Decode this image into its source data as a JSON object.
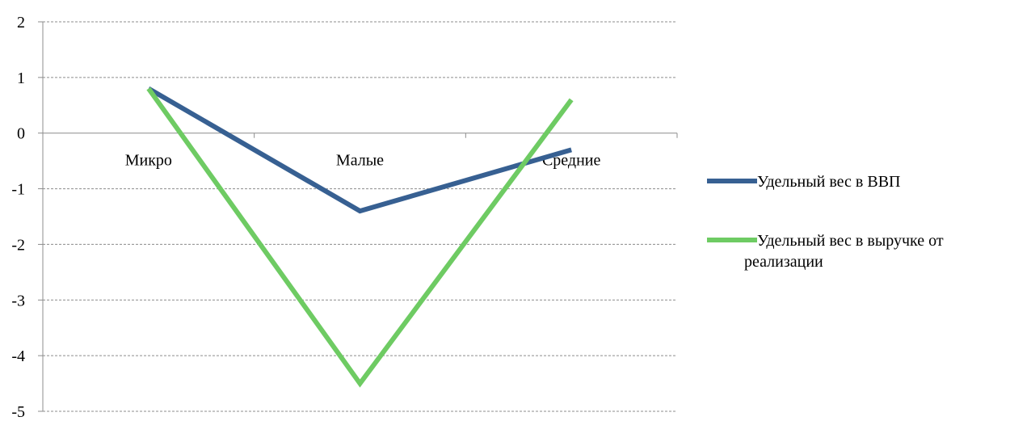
{
  "chart_data": {
    "type": "line",
    "title": "",
    "xlabel": "",
    "ylabel": "",
    "categories": [
      "Микро",
      "Малые",
      "Средние"
    ],
    "ylim": [
      -5,
      2
    ],
    "yticks": [
      2,
      1,
      0,
      -1,
      -2,
      -3,
      -4,
      -5
    ],
    "ytick_labels": [
      "2",
      "1",
      "0",
      "-1",
      "-2",
      "-3",
      "-4",
      "-5"
    ],
    "grid": "horizontal dashed",
    "legend_position": "right",
    "series": [
      {
        "name": "Удельный вес в ВВП",
        "values": [
          0.8,
          -1.4,
          -0.3
        ],
        "color": "#376092"
      },
      {
        "name": "Удельный вес в выручке от реализации",
        "values": [
          0.8,
          -4.5,
          0.6
        ],
        "color": "#6ECB63"
      }
    ],
    "legend_lines": [
      [
        "Удельный вес в ВВП"
      ],
      [
        "Удельный вес в выручке от",
        "реализации"
      ]
    ]
  }
}
